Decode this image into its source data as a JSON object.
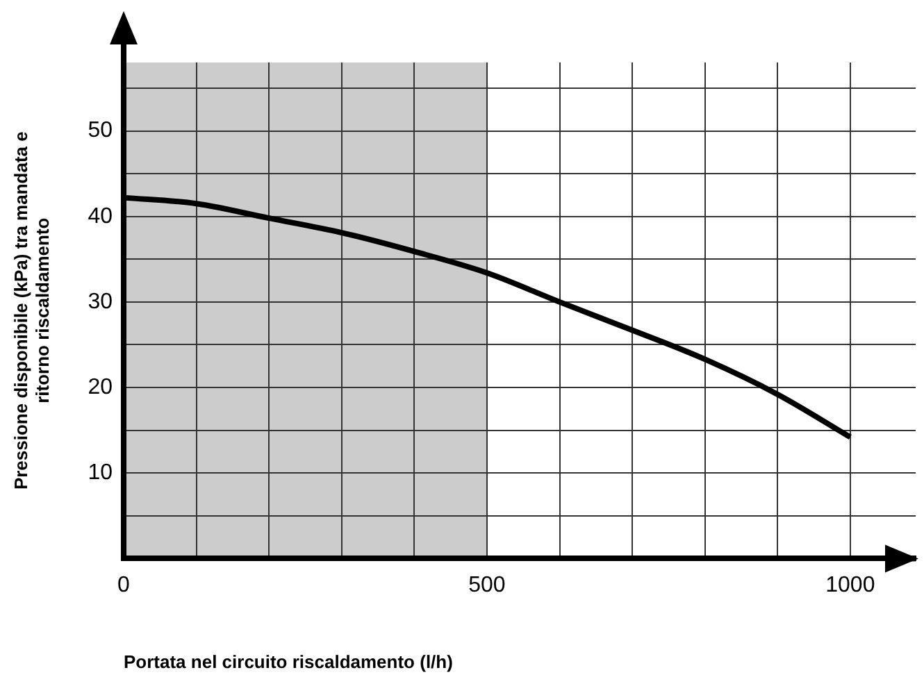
{
  "chart_data": {
    "type": "line",
    "xlabel": "Portata nel circuito riscaldamento (l/h)",
    "ylabel": "Pressione disponibile (kPa) tra mandata e ritorno riscaldamento",
    "x": [
      0,
      100,
      200,
      300,
      400,
      500,
      600,
      700,
      800,
      900,
      1000
    ],
    "series": [
      {
        "color": "#000000",
        "values": [
          42.2,
          41.5,
          39.8,
          38.1,
          35.9,
          33.4,
          30,
          26.7,
          23.3,
          19.2,
          14.2
        ]
      }
    ],
    "xlim": [
      0,
      1090
    ],
    "ylim": [
      0,
      58
    ],
    "xticks": [
      0,
      {
        "value": 100,
        "label": null
      },
      {
        "value": 200,
        "label": null
      },
      {
        "value": 300,
        "label": null
      },
      {
        "value": 400,
        "label": null
      },
      500,
      {
        "value": 600,
        "label": null
      },
      {
        "value": 700,
        "label": null
      },
      {
        "value": 800,
        "label": null
      },
      {
        "value": 900,
        "label": null
      },
      1000
    ],
    "yticks": [
      {
        "value": 5,
        "label": null
      },
      10,
      {
        "value": 15,
        "label": null
      },
      20,
      {
        "value": 25,
        "label": null
      },
      30,
      {
        "value": 35,
        "label": null
      },
      40,
      {
        "value": 45,
        "label": null
      },
      50,
      {
        "value": 55,
        "label": null
      }
    ],
    "bands": [
      {
        "axis": "x",
        "from": 0,
        "to": 500,
        "color": "#cccccc"
      }
    ],
    "grid": true,
    "legend": false,
    "marker": "none",
    "line_style": "solid"
  }
}
